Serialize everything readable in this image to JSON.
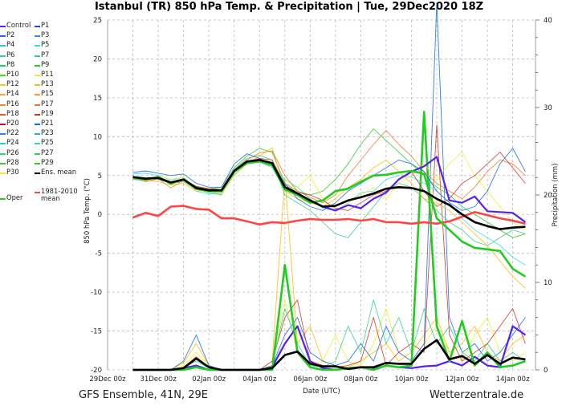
{
  "title": "Istanbul  (TR)  850 hPa Temp. & Precipitation | Tue, 29Dec2020 18Z",
  "footer": {
    "left": "GFS Ensemble, 41N, 29E",
    "right": "Wetterzentrale.de"
  },
  "legend": [
    {
      "label": "Control",
      "color": "#5522ee"
    },
    {
      "label": "P1",
      "color": "#2244ee"
    },
    {
      "label": "P2",
      "color": "#2266ee"
    },
    {
      "label": "P3",
      "color": "#2299ee"
    },
    {
      "label": "P4",
      "color": "#33bbee"
    },
    {
      "label": "P5",
      "color": "#33ddee"
    },
    {
      "label": "P6",
      "color": "#33ccaa"
    },
    {
      "label": "P7",
      "color": "#33cc88"
    },
    {
      "label": "P8",
      "color": "#22cc55"
    },
    {
      "label": "P9",
      "color": "#22cc22"
    },
    {
      "label": "P10",
      "color": "#44dd11"
    },
    {
      "label": "P11",
      "color": "#eeee22"
    },
    {
      "label": "P12",
      "color": "#eecc11"
    },
    {
      "label": "P13",
      "color": "#ffbb00"
    },
    {
      "label": "P14",
      "color": "#ffaa33"
    },
    {
      "label": "P15",
      "color": "#ff9922"
    },
    {
      "label": "P16",
      "color": "#ee8833"
    },
    {
      "label": "P17",
      "color": "#ee7722"
    },
    {
      "label": "P18",
      "color": "#dd5533"
    },
    {
      "label": "P19",
      "color": "#cc3322"
    },
    {
      "label": "P20",
      "color": "#bb1122"
    },
    {
      "label": "P21",
      "color": "#1166ee"
    },
    {
      "label": "P22",
      "color": "#2288ee"
    },
    {
      "label": "P23",
      "color": "#22aaee"
    },
    {
      "label": "P24",
      "color": "#22ccee"
    },
    {
      "label": "P25",
      "color": "#22ddaa"
    },
    {
      "label": "P26",
      "color": "#33cc77"
    },
    {
      "label": "P27",
      "color": "#33cc55"
    },
    {
      "label": "P28",
      "color": "#33cc33"
    },
    {
      "label": "P29",
      "color": "#33cc11"
    },
    {
      "label": "P30",
      "color": "#eeee22"
    },
    {
      "label": "Ens. mean",
      "color": "#000000"
    },
    {
      "label": "Oper",
      "color": "#22cc22"
    },
    {
      "label": "1981-2010\nmean",
      "color": "#ff4444"
    }
  ],
  "chart_data": {
    "type": "line",
    "title": "Istanbul  (TR)  850 hPa Temp. & Precipitation | Tue, 29Dec2020 18Z",
    "xlabel": "Date (UTC)",
    "ylabel": "850 hPa Temp. (°C)",
    "y2label": "Precipitation (mm)",
    "ylim": [
      -20,
      25
    ],
    "y2lim": [
      0,
      40
    ],
    "yticks": [
      "25",
      "20",
      "15",
      "10",
      "5",
      "0",
      "-5",
      "-10",
      "-15",
      "-20"
    ],
    "y2ticks": [
      "40",
      "30",
      "20",
      "10",
      "0"
    ],
    "xlim_days": [
      0,
      16.9
    ],
    "xticks": [
      "29Dec 00z",
      "31Dec 00z",
      "02Jan 00z",
      "04Jan 00z",
      "06Jan 00z",
      "08Jan 00z",
      "10Jan 00z",
      "12Jan 00z",
      "14Jan 00z"
    ],
    "grid": true,
    "x_days": [
      1,
      1.5,
      2,
      2.5,
      3,
      3.5,
      4,
      4.5,
      5,
      5.5,
      6,
      6.5,
      7,
      7.5,
      8,
      8.5,
      9,
      9.5,
      10,
      10.5,
      11,
      11.5,
      12,
      12.5,
      13,
      13.5,
      14,
      14.5,
      15,
      15.5,
      16,
      16.5
    ],
    "temperature_series": [
      {
        "name": "P5",
        "color": "#33ddee",
        "values": [
          5.2,
          5.3,
          5.0,
          4.4,
          4.8,
          3.0,
          2.6,
          2.8,
          5.2,
          6.5,
          6.8,
          6.0,
          4.5,
          3.5,
          2.0,
          0.8,
          0.5,
          1.5,
          2.8,
          3.0,
          4.5,
          5.0,
          4.8,
          4.0,
          3.0,
          1.5,
          -0.5,
          -2.0,
          -3.0,
          -4.0,
          -5.5,
          -6.5
        ]
      },
      {
        "name": "P7",
        "color": "#33cc88",
        "values": [
          4.5,
          4.3,
          4.5,
          4.0,
          4.2,
          3.2,
          2.8,
          2.5,
          5.8,
          7.2,
          7.6,
          7.0,
          2.5,
          1.5,
          0.5,
          -1.0,
          -2.5,
          -3.0,
          -1.0,
          1.0,
          3.0,
          4.0,
          3.5,
          2.0,
          0.5,
          -1.0,
          -2.0,
          -3.5,
          -4.0,
          -3.0,
          -2.0,
          -2.5
        ]
      },
      {
        "name": "P9",
        "color": "#22cc22",
        "values": [
          4.9,
          4.7,
          4.8,
          3.8,
          4.6,
          3.6,
          3.3,
          3.5,
          6.0,
          7.5,
          8.5,
          8.0,
          4.0,
          3.0,
          2.5,
          3.0,
          4.5,
          6.5,
          9.0,
          11.0,
          9.5,
          8.0,
          6.5,
          5.0,
          3.5,
          2.5,
          1.0,
          0.0,
          -1.0,
          -2.0,
          -3.0,
          -2.5
        ]
      },
      {
        "name": "P11",
        "color": "#eeee22",
        "values": [
          4.7,
          4.5,
          4.9,
          4.5,
          4.8,
          3.5,
          3.3,
          3.0,
          5.5,
          6.5,
          6.8,
          6.5,
          4.0,
          3.5,
          5.0,
          2.0,
          0.5,
          1.5,
          2.5,
          3.5,
          2.0,
          4.0,
          5.0,
          6.5,
          4.5,
          6.5,
          8.0,
          5.0,
          3.0,
          1.0,
          -1.0,
          -2.0
        ]
      },
      {
        "name": "P13",
        "color": "#ffbb00",
        "values": [
          4.6,
          4.4,
          4.2,
          3.8,
          4.0,
          3.0,
          3.0,
          2.6,
          5.0,
          6.5,
          7.5,
          8.6,
          3.0,
          2.0,
          1.5,
          1.0,
          2.0,
          3.5,
          4.5,
          6.0,
          7.0,
          5.5,
          4.0,
          2.0,
          1.5,
          0.5,
          -1.0,
          -2.5,
          -4.0,
          -6.0,
          -8.0,
          -9.5
        ]
      },
      {
        "name": "P17",
        "color": "#ee7722",
        "values": [
          4.8,
          4.2,
          4.6,
          3.4,
          4.4,
          3.2,
          3.0,
          3.2,
          5.7,
          7.0,
          7.9,
          8.2,
          5.0,
          3.0,
          2.2,
          1.5,
          2.5,
          5.0,
          7.0,
          9.0,
          10.8,
          9.0,
          7.5,
          5.5,
          4.0,
          3.0,
          2.0,
          3.5,
          5.5,
          7.0,
          6.5,
          5.0
        ]
      },
      {
        "name": "P19",
        "color": "#cc3322",
        "values": [
          4.8,
          4.5,
          4.6,
          4.0,
          4.4,
          3.6,
          3.3,
          3.2,
          5.6,
          6.8,
          7.2,
          7.0,
          3.8,
          2.8,
          2.5,
          1.8,
          0.8,
          0.5,
          1.5,
          2.5,
          3.0,
          4.5,
          5.5,
          3.0,
          1.0,
          2.0,
          4.0,
          5.0,
          6.5,
          8.0,
          6.0,
          4.0
        ]
      },
      {
        "name": "P21",
        "color": "#1166ee",
        "values": [
          5.4,
          5.6,
          5.3,
          5.0,
          5.2,
          4.0,
          3.5,
          3.5,
          6.5,
          7.8,
          7.2,
          6.5,
          4.0,
          2.0,
          1.0,
          0.5,
          1.5,
          3.0,
          4.0,
          5.0,
          6.0,
          7.0,
          6.5,
          5.5,
          3.0,
          1.5,
          0.5,
          1.0,
          3.0,
          6.5,
          8.5,
          5.5
        ]
      },
      {
        "name": "1981-2010 mean",
        "color": "#ff4444",
        "values": [
          -0.4,
          0.2,
          -0.2,
          1.0,
          1.1,
          0.7,
          0.6,
          -0.5,
          -0.5,
          -0.9,
          -1.3,
          -1.0,
          -1.1,
          -0.8,
          -0.6,
          -0.7,
          -0.7,
          -0.6,
          -0.8,
          -0.6,
          -1.0,
          -1.0,
          -1.2,
          -1.0,
          -1.2,
          -0.9,
          -0.3,
          0.3,
          -0.1,
          -0.5,
          -0.8,
          -1.2
        ]
      },
      {
        "name": "Control",
        "color": "#5522ee",
        "values": [
          4.8,
          4.6,
          4.7,
          4.1,
          4.5,
          3.4,
          3.1,
          3.1,
          5.6,
          6.8,
          7.0,
          6.6,
          3.5,
          2.7,
          1.8,
          1.0,
          0.5,
          1.2,
          0.8,
          2.0,
          2.8,
          4.5,
          5.5,
          6.2,
          7.4,
          1.8,
          1.5,
          2.3,
          0.4,
          0.3,
          0.2,
          -1.0
        ]
      },
      {
        "name": "Oper",
        "color": "#22cc22",
        "values": [
          4.7,
          4.5,
          4.8,
          4.0,
          4.5,
          3.3,
          3.0,
          3.0,
          5.5,
          6.6,
          6.8,
          6.3,
          3.2,
          2.5,
          1.5,
          1.8,
          3.0,
          3.3,
          4.2,
          5.0,
          5.1,
          5.4,
          5.6,
          5.2,
          -0.5,
          -2.0,
          -3.5,
          -4.3,
          -4.5,
          -4.7,
          -7.0,
          -8.0
        ]
      },
      {
        "name": "Ens. mean",
        "color": "#000000",
        "values": [
          4.8,
          4.6,
          4.7,
          4.1,
          4.5,
          3.4,
          3.1,
          3.1,
          5.6,
          6.8,
          7.0,
          6.6,
          3.5,
          2.7,
          1.8,
          1.0,
          1.1,
          1.8,
          2.2,
          2.7,
          3.3,
          3.5,
          3.4,
          3.0,
          2.0,
          1.2,
          0.0,
          -1.0,
          -1.5,
          -1.9,
          -1.7,
          -1.6
        ]
      }
    ],
    "precipitation_series": [
      {
        "name": "P11",
        "color": "#eeee22",
        "values": [
          0,
          0,
          0,
          0,
          0.5,
          2,
          0.5,
          0,
          0,
          0,
          0,
          0.5,
          8,
          2,
          0.5,
          1,
          4,
          1,
          0.5,
          3,
          7,
          2,
          1,
          3,
          5,
          2,
          1,
          4,
          6,
          2,
          1,
          2
        ]
      },
      {
        "name": "P13",
        "color": "#ffbb00",
        "values": [
          0,
          0,
          0,
          0,
          0.8,
          3,
          0.5,
          0,
          0,
          0,
          0,
          1,
          22,
          3,
          5,
          1,
          0.5,
          0.3,
          1,
          2,
          3,
          1,
          2,
          4,
          6,
          2,
          3,
          5,
          2,
          1,
          3,
          4
        ]
      },
      {
        "name": "P19",
        "color": "#cc3322",
        "values": [
          0,
          0,
          0,
          0,
          0.3,
          1.5,
          0.3,
          0,
          0,
          0,
          0,
          1,
          6,
          8,
          1,
          0.5,
          0.3,
          0.5,
          1,
          6,
          0.5,
          2,
          3,
          2,
          28,
          4,
          1,
          2,
          3,
          5,
          7,
          3
        ]
      },
      {
        "name": "P21",
        "color": "#1166ee",
        "values": [
          0,
          0,
          0,
          0,
          1,
          4,
          0.5,
          0,
          0,
          0,
          0,
          0.5,
          4,
          6,
          2,
          1,
          0.5,
          1,
          3,
          1,
          5,
          2,
          1,
          3,
          42,
          6,
          2,
          3,
          1,
          2,
          4,
          6
        ]
      },
      {
        "name": "P7",
        "color": "#33cc88",
        "values": [
          0,
          0,
          0,
          0,
          0.3,
          1,
          0.2,
          0,
          0,
          0,
          0,
          0.5,
          7,
          3,
          0.5,
          0.3,
          1,
          5,
          2,
          8,
          3,
          6,
          2,
          7,
          3,
          5,
          2,
          1,
          3,
          1,
          2,
          1
        ]
      },
      {
        "name": "Control",
        "color": "#5522ee",
        "values": [
          0,
          0,
          0,
          0,
          0.2,
          0.5,
          0,
          0,
          0,
          0,
          0,
          0.3,
          3,
          5,
          1,
          0.2,
          0,
          0.2,
          0.3,
          0.1,
          0.5,
          0.3,
          0.2,
          0.4,
          0.5,
          1,
          0.5,
          1.5,
          0.5,
          0.3,
          5,
          4
        ]
      },
      {
        "name": "Oper",
        "color": "#22cc22",
        "values": [
          0,
          0,
          0,
          0,
          0,
          0.3,
          0,
          0,
          0,
          0,
          0,
          0,
          12,
          2,
          0.3,
          0,
          0,
          0.2,
          0.3,
          0,
          0.5,
          0.3,
          0.5,
          29.5,
          5,
          1,
          5.6,
          0.5,
          2,
          0.3,
          0.5,
          1
        ]
      },
      {
        "name": "Ens. mean",
        "color": "#000000",
        "values": [
          0,
          0,
          0,
          0,
          0.2,
          1.3,
          0.3,
          0,
          0,
          0,
          0,
          0.2,
          1.7,
          2.1,
          0.7,
          0.4,
          0.4,
          0.1,
          0.3,
          0.3,
          0.8,
          0.7,
          0.7,
          2.4,
          3.4,
          1.2,
          1.6,
          0.7,
          1.7,
          0.7,
          1.4,
          1.2
        ]
      }
    ]
  }
}
